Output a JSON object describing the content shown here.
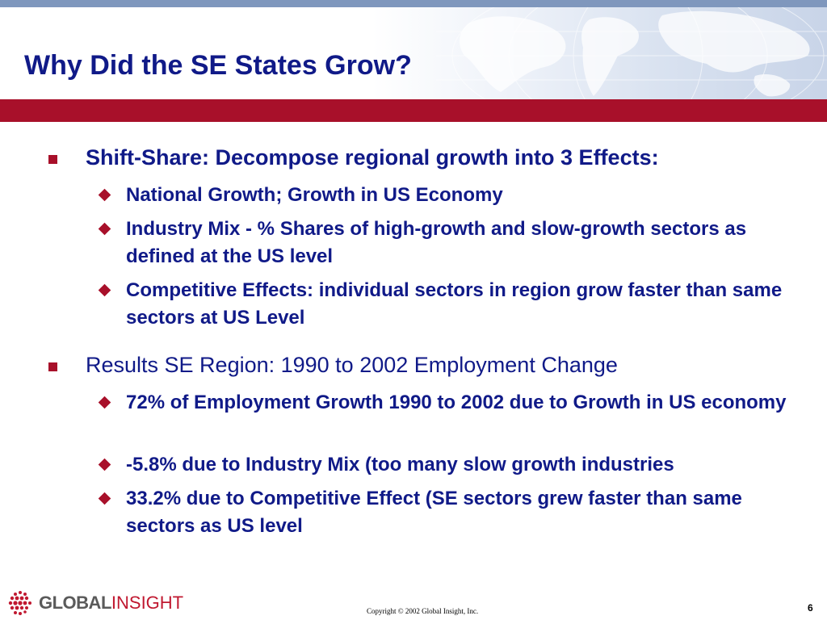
{
  "slide": {
    "title": "Why Did the SE States Grow?",
    "accent_color": "#a8102a",
    "title_color": "#101a88"
  },
  "bullets": [
    {
      "text": "Shift-Share: Decompose regional growth into 3 Effects:",
      "sub": [
        "National Growth; Growth in US Economy",
        "Industry Mix - % Shares of high-growth and slow-growth sectors as defined at the US level",
        "Competitive Effects: individual sectors in region grow faster than same sectors at US Level"
      ]
    },
    {
      "text": "Results SE Region: 1990 to 2002 Employment Change",
      "sub": [
        "72% of Employment Growth 1990 to 2002 due to Growth in US economy",
        "-5.8% due to Industry Mix (too many slow growth industries",
        "33.2% due to Competitive Effect (SE sectors grew faster than same sectors as US level"
      ]
    }
  ],
  "footer": {
    "logo_global": "GLOBAL",
    "logo_insight": "INSIGHT",
    "copyright": "Copyright © 2002 Global Insight, Inc.",
    "page_number": "6"
  },
  "icons": {
    "level1_bullet": "square-bullet-icon",
    "level2_bullet": "diamond-bullet-icon",
    "background": "world-map-graphic",
    "logo": "global-insight-logo"
  }
}
